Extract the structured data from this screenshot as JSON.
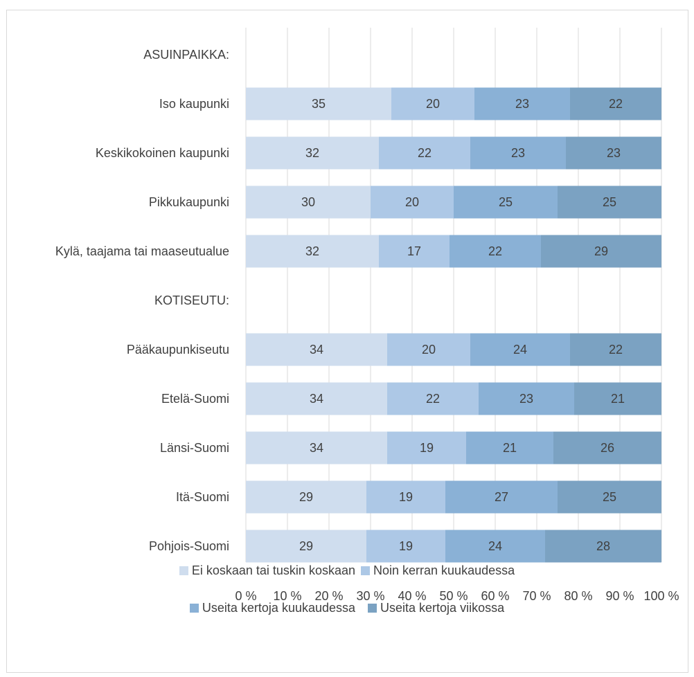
{
  "chart_data": {
    "type": "bar",
    "orientation": "horizontal",
    "stacked": "percent",
    "categories": [
      "ASUINPAIKKA:",
      "Iso kaupunki",
      "Keskikokoinen kaupunki",
      "Pikkukaupunki",
      "Kylä, taajama tai maaseutualue",
      "KOTISEUTU:",
      "Pääkaupunkiseutu",
      "Etelä-Suomi",
      "Länsi-Suomi",
      "Itä-Suomi",
      "Pohjois-Suomi"
    ],
    "series": [
      {
        "name": "Ei koskaan tai tuskin koskaan",
        "color": "#cfddee",
        "values": [
          null,
          35,
          32,
          30,
          32,
          null,
          34,
          34,
          34,
          29,
          29
        ]
      },
      {
        "name": "Noin kerran kuukaudessa",
        "color": "#adc8e6",
        "values": [
          null,
          20,
          22,
          20,
          17,
          null,
          20,
          22,
          19,
          19,
          19
        ]
      },
      {
        "name": "Useita kertoja kuukaudessa",
        "color": "#8ab1d6",
        "values": [
          null,
          23,
          23,
          25,
          22,
          null,
          24,
          23,
          21,
          27,
          24
        ]
      },
      {
        "name": "Useita kertoja viikossa",
        "color": "#7ba2c2",
        "values": [
          null,
          22,
          23,
          25,
          29,
          null,
          22,
          21,
          26,
          25,
          28
        ]
      }
    ],
    "xticks": [
      "0 %",
      "10 %",
      "20 %",
      "30 %",
      "40 %",
      "50 %",
      "60 %",
      "70 %",
      "80 %",
      "90 %",
      "100 %"
    ],
    "xlim": [
      0,
      100
    ],
    "grid": true,
    "legend": "bottom"
  }
}
